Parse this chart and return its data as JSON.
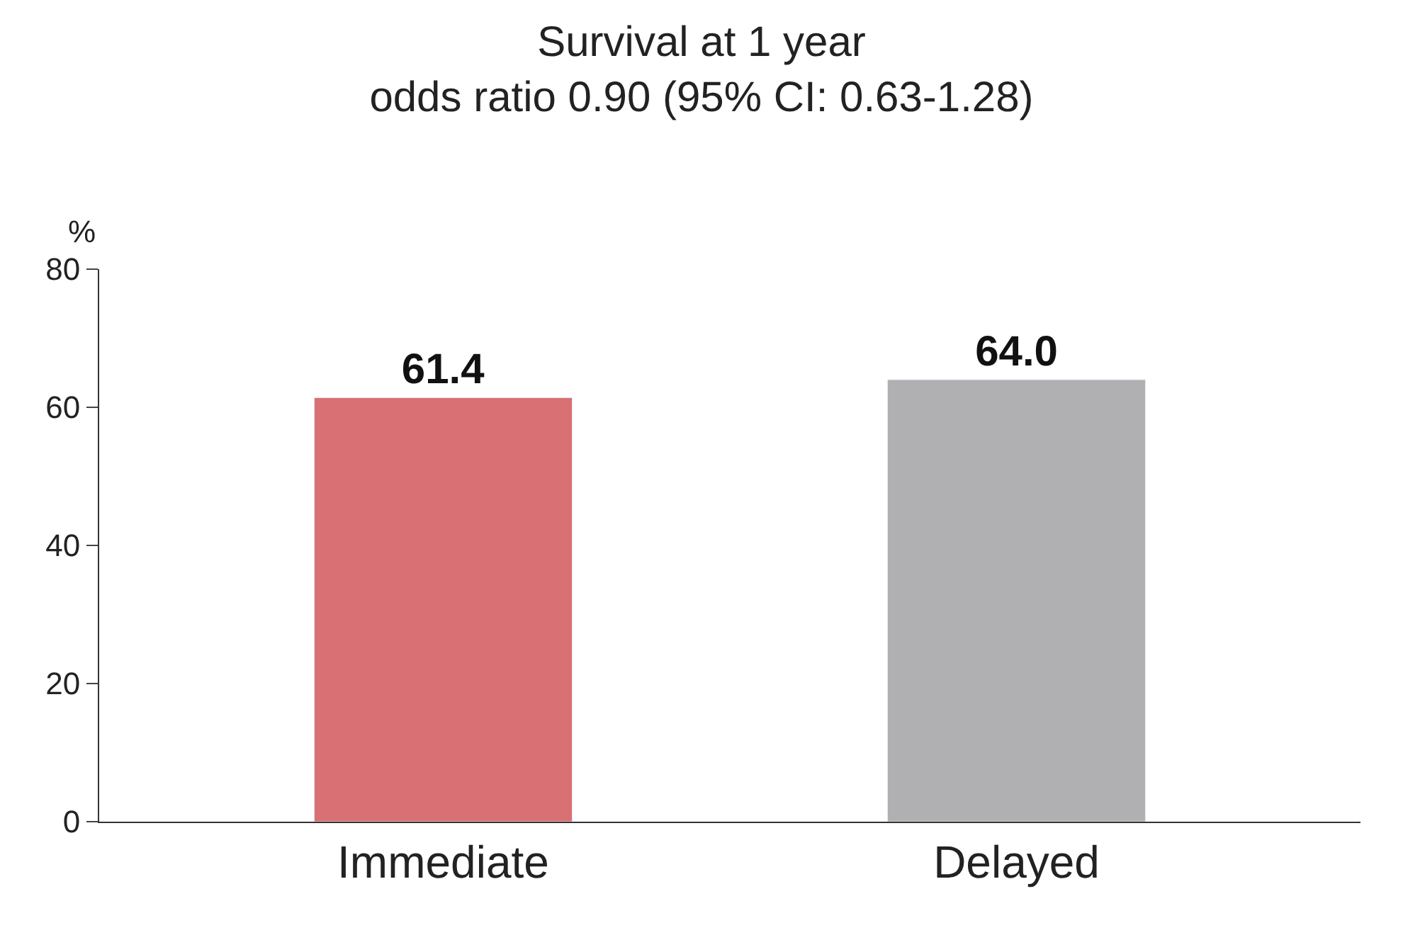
{
  "chart_data": {
    "type": "bar",
    "title": "Survival at 1 year",
    "subtitle": "odds ratio 0.90 (95% CI: 0.63-1.28)",
    "ylabel": "%",
    "categories": [
      "Immediate",
      "Delayed"
    ],
    "values": [
      61.4,
      64.0
    ],
    "colors": [
      "#d97074",
      "#b0b0b2"
    ],
    "ylim": [
      0,
      80
    ],
    "yticks": [
      0,
      20,
      40,
      60,
      80
    ],
    "value_labels": [
      "61.4",
      "64.0"
    ]
  }
}
